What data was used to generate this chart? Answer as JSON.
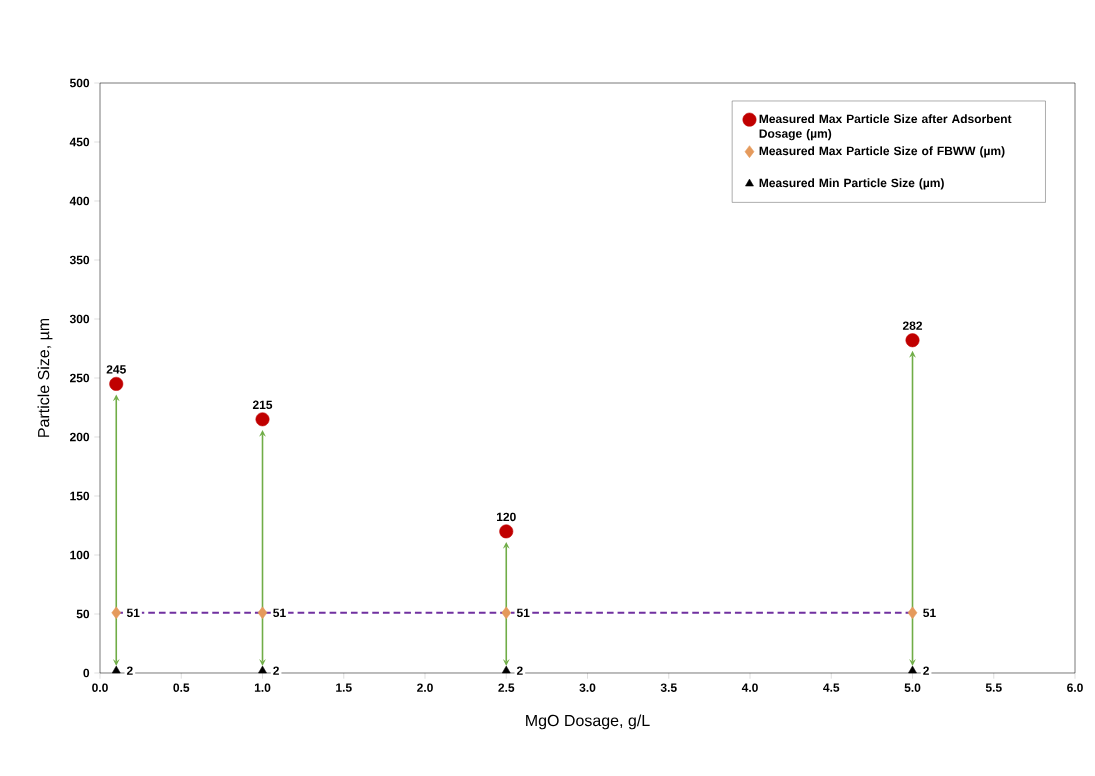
{
  "chart_data": {
    "type": "scatter",
    "xlabel": "MgO Dosage, g/L",
    "ylabel": "Particle Size, µm",
    "xlim": [
      0,
      6
    ],
    "ylim": [
      0,
      500
    ],
    "xticks": [
      {
        "value": 0,
        "label": "0.0"
      },
      {
        "value": 0.5,
        "label": "0.5"
      },
      {
        "value": 1,
        "label": "1.0"
      },
      {
        "value": 1.5,
        "label": "1.5"
      },
      {
        "value": 2,
        "label": "2.0"
      },
      {
        "value": 2.5,
        "label": "2.5"
      },
      {
        "value": 3,
        "label": "3.0"
      },
      {
        "value": 3.5,
        "label": "3.5"
      },
      {
        "value": 4,
        "label": "4.0"
      },
      {
        "value": 4.5,
        "label": "4.5"
      },
      {
        "value": 5,
        "label": "5.0"
      },
      {
        "value": 5.5,
        "label": "5.5"
      },
      {
        "value": 6,
        "label": "6.0"
      }
    ],
    "yticks": [
      0,
      50,
      100,
      150,
      200,
      250,
      300,
      350,
      400,
      450,
      500
    ],
    "legend": "top right",
    "x": [
      0.1,
      1,
      2.5,
      5
    ],
    "series": [
      {
        "name": "Measured Max Particle Size after Adsorbent Dosage (µm)",
        "color": "#c00000",
        "marker": "circle",
        "values": [
          245,
          215,
          120,
          282
        ],
        "value_labels": [
          "245",
          "215",
          "120",
          "282"
        ]
      },
      {
        "name": "Measured Max Particle Size of FBWW (µm)",
        "color": "#e59a5c",
        "marker": "diamond",
        "values": [
          51,
          51,
          51,
          51
        ],
        "value_labels": [
          "51",
          "51",
          "51",
          "51"
        ]
      },
      {
        "name": "Measured Min Particle Size (µm)",
        "color": "#000000",
        "marker": "triangle",
        "values": [
          2,
          2,
          2,
          2
        ],
        "value_labels": [
          "2",
          "2",
          "2",
          "2"
        ]
      },
      {
        "type": "line",
        "color": "#7030a0",
        "line_style": "dashed",
        "marker": "none",
        "values": [
          51,
          51,
          51,
          51
        ]
      }
    ]
  }
}
